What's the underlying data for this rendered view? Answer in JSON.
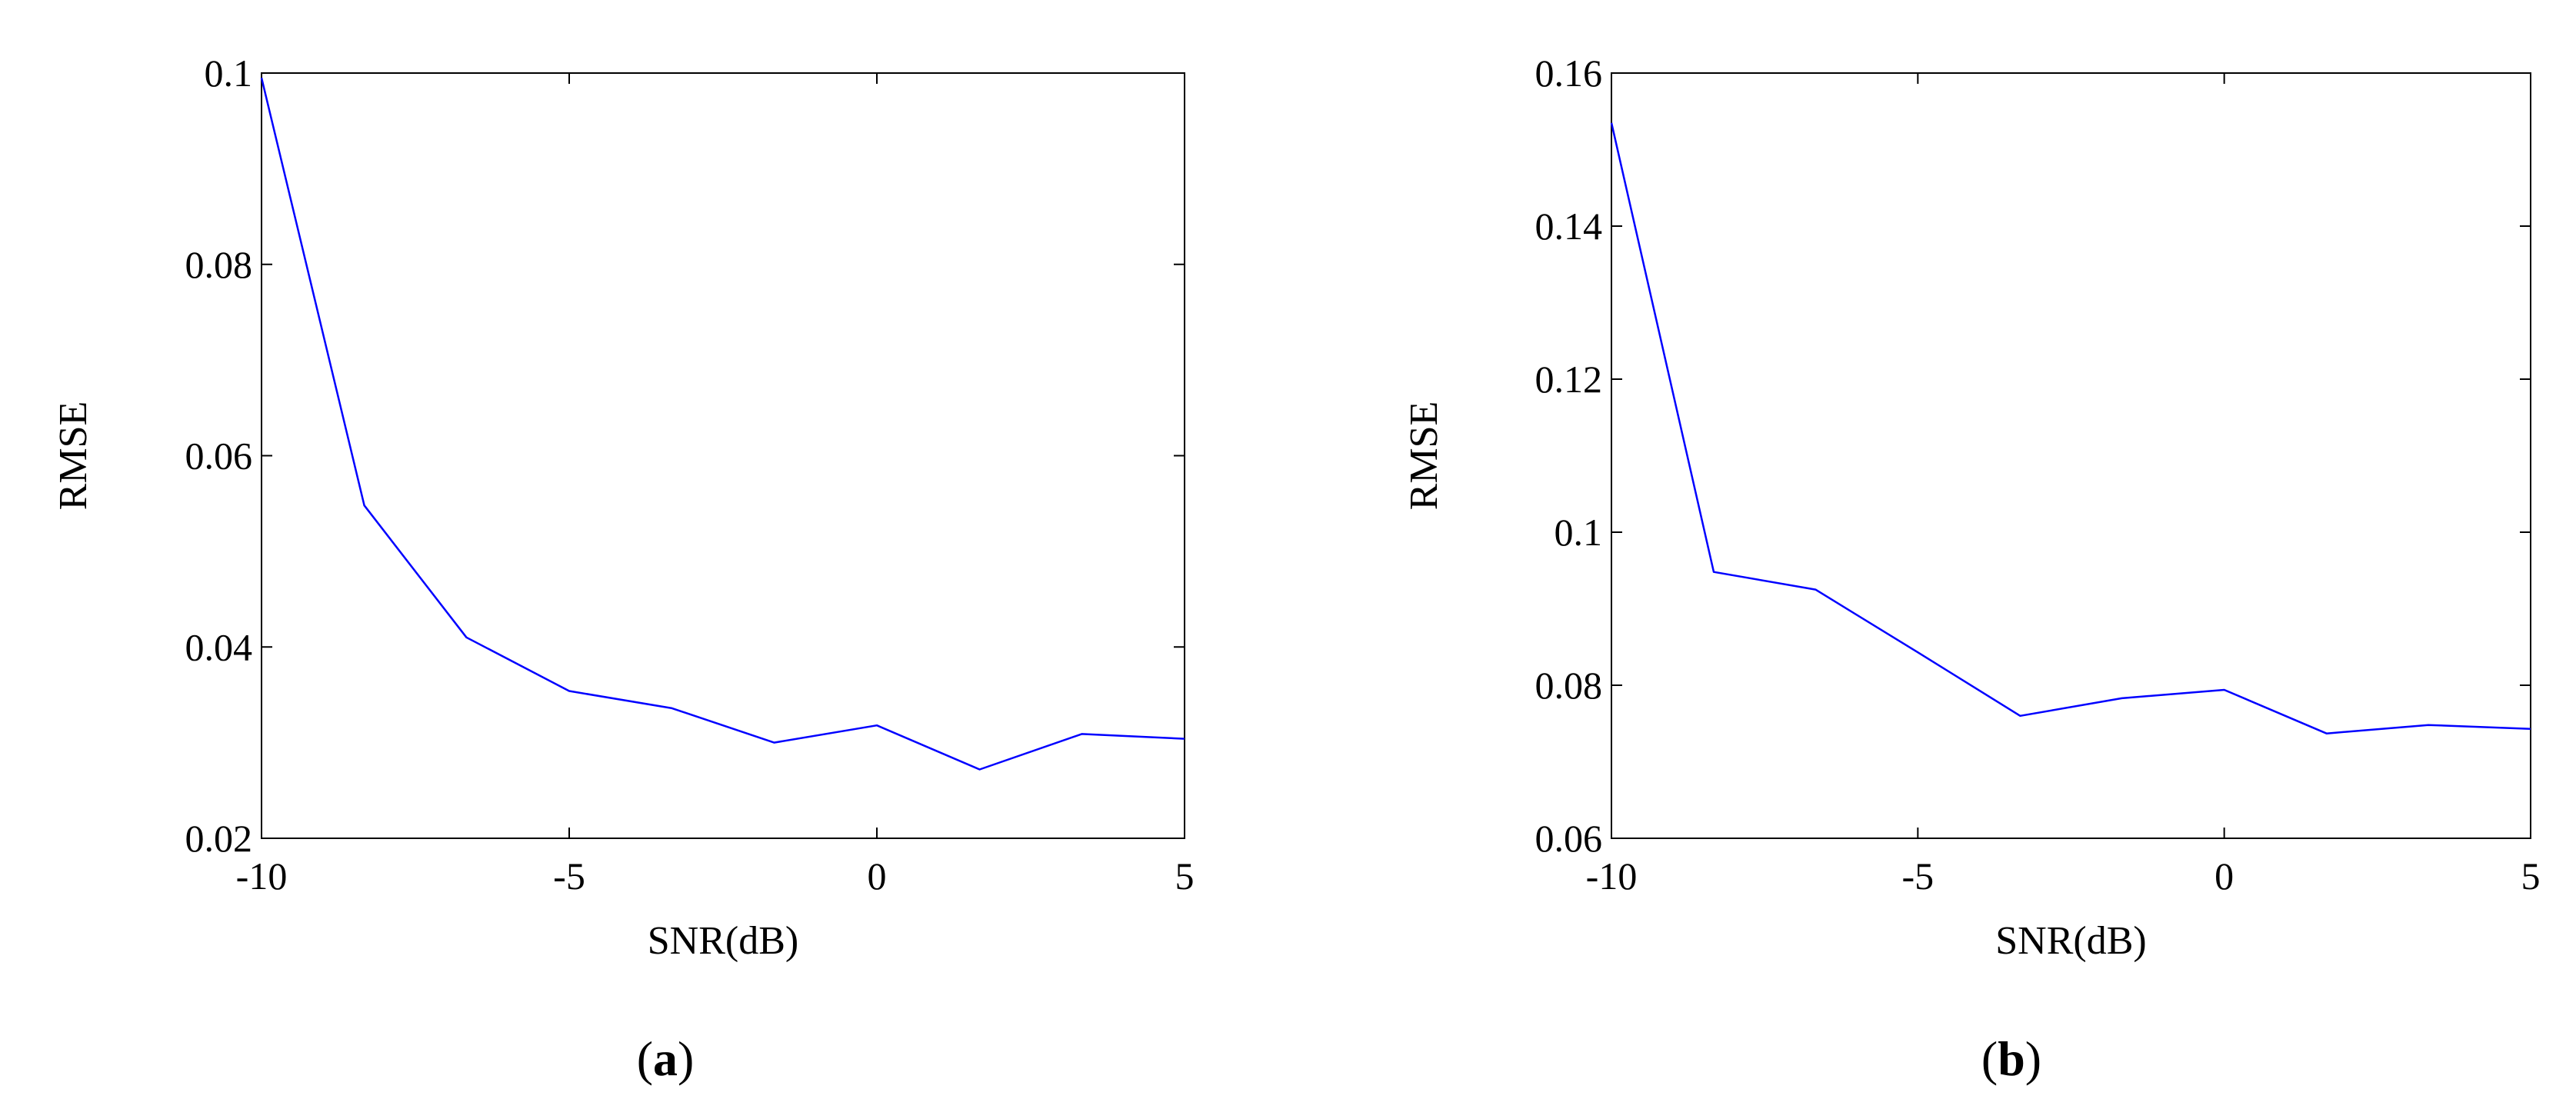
{
  "chart_data": [
    {
      "type": "line",
      "panel": "a",
      "xlabel": "SNR(dB)",
      "ylabel": "RMSE",
      "xlim": [
        -10,
        5
      ],
      "ylim": [
        0.02,
        0.1
      ],
      "xticks": [
        -10,
        -5,
        0,
        5
      ],
      "xtick_labels": [
        "-10",
        "-5",
        "0",
        "5"
      ],
      "yticks": [
        0.02,
        0.04,
        0.06,
        0.08,
        0.1
      ],
      "ytick_labels": [
        "0.02",
        "0.04",
        "0.06",
        "0.08",
        "0.1"
      ],
      "grid": false,
      "series": [
        {
          "color": "#0000ff",
          "x": [
            -10,
            -8.33,
            -6.67,
            -5,
            -3.33,
            -1.67,
            0,
            1.67,
            3.33,
            5
          ],
          "y": [
            0.0995,
            0.0548,
            0.041,
            0.0354,
            0.0336,
            0.03,
            0.0318,
            0.0272,
            0.0309,
            0.0304
          ]
        }
      ]
    },
    {
      "type": "line",
      "panel": "b",
      "xlabel": "SNR(dB)",
      "ylabel": "RMSE",
      "xlim": [
        -10,
        5
      ],
      "ylim": [
        0.06,
        0.16
      ],
      "xticks": [
        -10,
        -5,
        0,
        5
      ],
      "xtick_labels": [
        "-10",
        "-5",
        "0",
        "5"
      ],
      "yticks": [
        0.06,
        0.08,
        0.1,
        0.12,
        0.14,
        0.16
      ],
      "ytick_labels": [
        "0.06",
        "0.08",
        "0.1",
        "0.12",
        "0.14",
        "0.16"
      ],
      "grid": false,
      "series": [
        {
          "color": "#0000ff",
          "x": [
            -10,
            -8.33,
            -6.67,
            -5,
            -3.33,
            -1.67,
            0,
            1.67,
            3.33,
            5
          ],
          "y": [
            0.1535,
            0.0948,
            0.0925,
            0.0843,
            0.076,
            0.0783,
            0.0794,
            0.0737,
            0.0748,
            0.0743
          ]
        }
      ]
    }
  ],
  "captions": [
    {
      "open": "(",
      "letter": "a",
      "close": ")"
    },
    {
      "open": "(",
      "letter": "b",
      "close": ")"
    }
  ]
}
